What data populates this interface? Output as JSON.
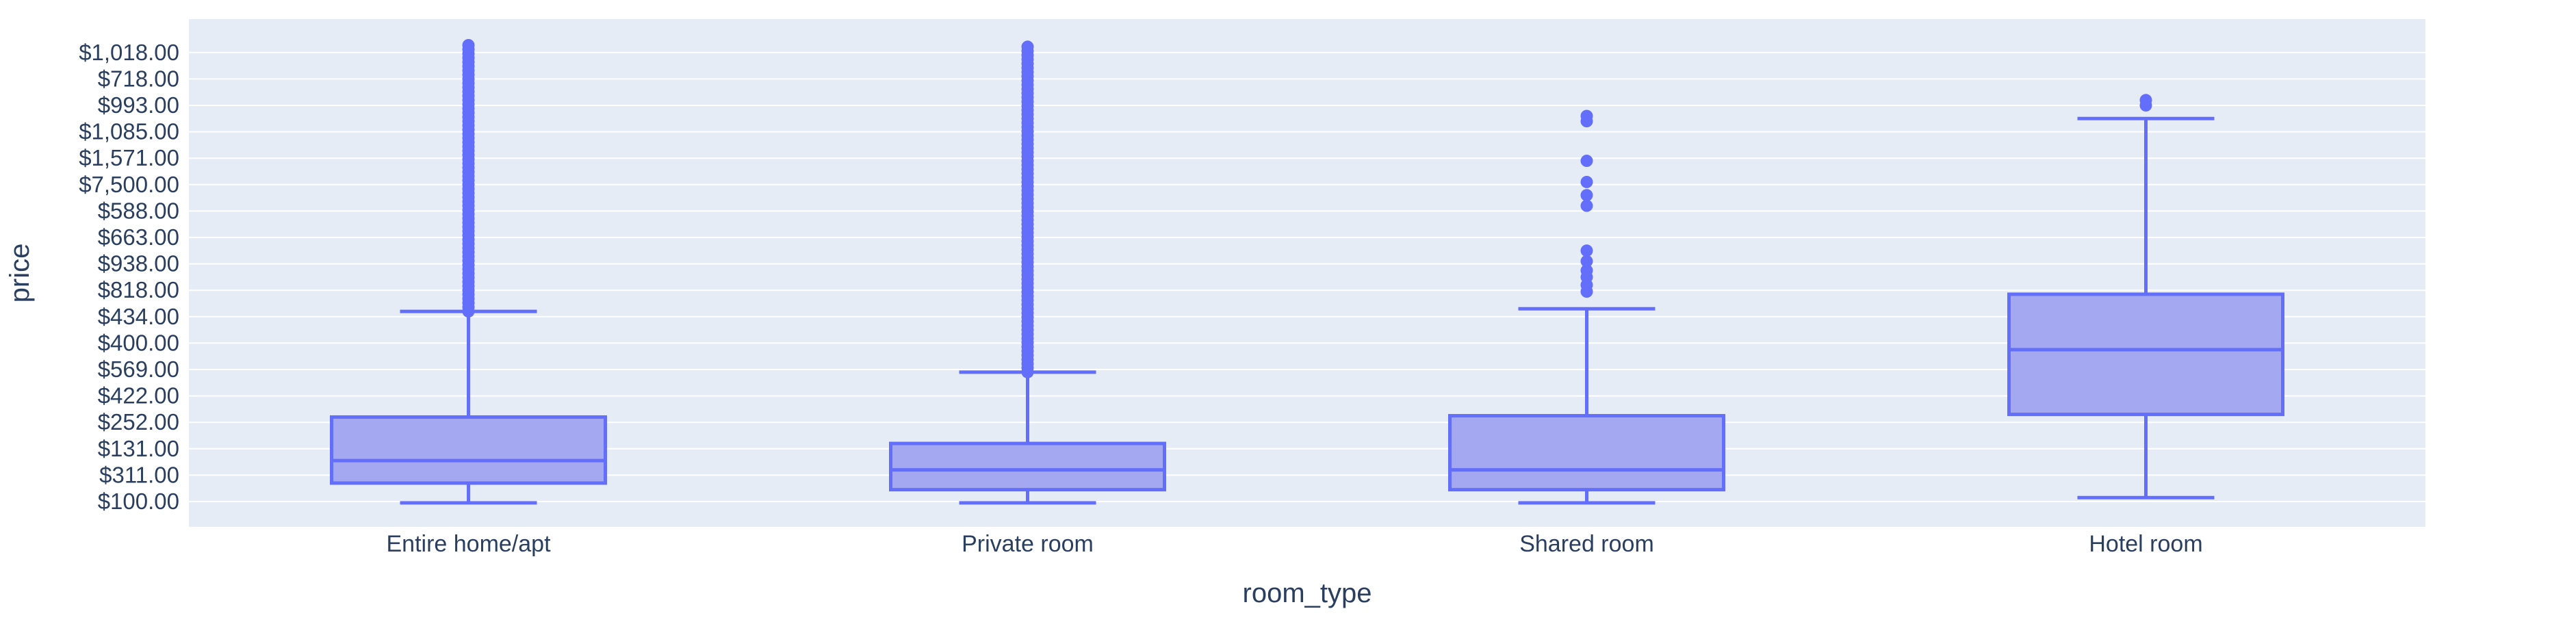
{
  "colors": {
    "plot_background": "#E5ECF6",
    "grid": "#ffffff",
    "box_fill": "#A3A8F0",
    "box_line": "#636EFA",
    "text": "#2a3f5f"
  },
  "chart_data": {
    "type": "box",
    "xlabel": "room_type",
    "ylabel": "price",
    "grid": true,
    "legend": "none",
    "y_categories": [
      "$100.00",
      "$311.00",
      "$131.00",
      "$252.00",
      "$422.00",
      "$569.00",
      "$400.00",
      "$434.00",
      "$818.00",
      "$938.00",
      "$663.00",
      "$588.00",
      "$7,500.00",
      "$1,571.00",
      "$1,085.00",
      "$993.00",
      "$718.00",
      "$1,018.00"
    ],
    "categories": [
      "Entire home/apt",
      "Private room",
      "Shared room",
      "Hotel room"
    ],
    "boxes": [
      {
        "category": "Entire home/apt",
        "lower_fence": -0.05,
        "q1": 0.7,
        "median": 1.55,
        "q3": 3.2,
        "upper_fence": 7.2,
        "outliers_range": [
          7.2,
          17.3
        ]
      },
      {
        "category": "Private room",
        "lower_fence": -0.05,
        "q1": 0.45,
        "median": 1.2,
        "q3": 2.2,
        "upper_fence": 4.9,
        "outliers_range": [
          4.9,
          17.3
        ]
      },
      {
        "category": "Shared room",
        "lower_fence": -0.05,
        "q1": 0.45,
        "median": 1.2,
        "q3": 3.25,
        "upper_fence": 7.3,
        "outliers": [
          7.95,
          8.2,
          8.5,
          8.75,
          9.1,
          9.5,
          11.2,
          11.6,
          12.1,
          12.9,
          14.4,
          14.6
        ]
      },
      {
        "category": "Hotel room",
        "lower_fence": 0.15,
        "q1": 3.3,
        "median": 5.75,
        "q3": 7.85,
        "upper_fence": 14.5,
        "outliers": [
          15.0,
          15.2
        ]
      }
    ]
  }
}
